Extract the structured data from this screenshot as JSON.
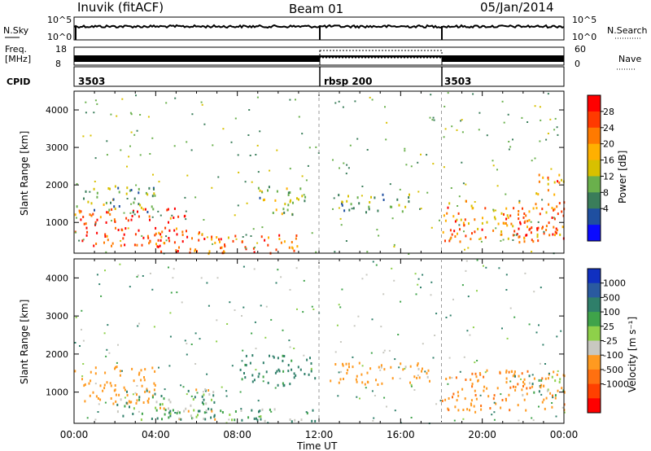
{
  "header": {
    "title": "Inuvik (fitACF)",
    "beam": "Beam 01",
    "date": "05/Jan/2014"
  },
  "noise_panel": {
    "left_label": "N.Sky",
    "right_label": "N.Search",
    "left_ticks": [
      "10^5",
      "10^0"
    ],
    "right_ticks": [
      "10^5",
      "10^0"
    ]
  },
  "freq_panel": {
    "left_label_1": "Freq.",
    "left_label_2": "[MHz]",
    "right_label": "Nave",
    "left_ticks": [
      "18",
      "8"
    ],
    "right_ticks": [
      "60",
      "0"
    ]
  },
  "cpid_panel": {
    "label": "CPID",
    "segments": [
      "3503",
      "rbsp 200",
      "3503"
    ]
  },
  "time_axis": {
    "label": "Time UT",
    "ticks": [
      "00:00",
      "04:00",
      "08:00",
      "12:00",
      "16:00",
      "20:00",
      "00:00"
    ]
  },
  "power_panel": {
    "ylabel": "Slant Range [km]",
    "yticks": [
      "4000",
      "3000",
      "2000",
      "1000"
    ],
    "colorbar_label": "Power [dB]",
    "colorbar_ticks": [
      "28",
      "24",
      "20",
      "16",
      "12",
      "8",
      "4"
    ],
    "colors": [
      "#ff0000",
      "#ff3a00",
      "#ff7a00",
      "#ffb000",
      "#d8c000",
      "#6ab04c",
      "#3a7d5a",
      "#1f4fa0",
      "#0a0aff"
    ]
  },
  "velocity_panel": {
    "ylabel": "Slant Range [km]",
    "yticks": [
      "4000",
      "3000",
      "2000",
      "1000"
    ],
    "colorbar_label": "Velocity [m s⁻¹]",
    "colorbar_ticks": [
      "1000",
      "500",
      "100",
      "25",
      "-25",
      "-100",
      "-500",
      "-1000"
    ],
    "colors": [
      "#1030c0",
      "#2a5aa0",
      "#2f7f6a",
      "#3fa34a",
      "#8ed04a",
      "#c8c8c0",
      "#ff9a20",
      "#ff7010",
      "#ff4000",
      "#ff0000"
    ]
  },
  "chart_data": {
    "type": "heatmap",
    "x_range_hours": [
      0,
      24
    ],
    "y_range_km": [
      180,
      4500
    ],
    "mode_changes_hours": [
      12,
      18
    ],
    "power_clusters": [
      {
        "t0": 0,
        "t1": 5.5,
        "r0": 400,
        "r1": 1400,
        "level": 27
      },
      {
        "t0": 0,
        "t1": 4,
        "r0": 1300,
        "r1": 2000,
        "level": 12
      },
      {
        "t0": 4,
        "t1": 7.5,
        "r0": 200,
        "r1": 800,
        "level": 25
      },
      {
        "t0": 6.5,
        "t1": 11,
        "r0": 200,
        "r1": 700,
        "level": 24
      },
      {
        "t0": 9,
        "t1": 11.5,
        "r0": 1200,
        "r1": 2000,
        "level": 14
      },
      {
        "t0": 12.8,
        "t1": 16.5,
        "r0": 1300,
        "r1": 1800,
        "level": 10
      },
      {
        "t0": 18,
        "t1": 24,
        "r0": 500,
        "r1": 1600,
        "level": 22
      },
      {
        "t0": 21,
        "t1": 24,
        "r0": 600,
        "r1": 1300,
        "level": 28
      },
      {
        "t0": 22.5,
        "t1": 24,
        "r0": 1700,
        "r1": 2300,
        "level": 22
      }
    ],
    "velocity_clusters": [
      {
        "t0": 0,
        "t1": 4,
        "r0": 700,
        "r1": 1700,
        "v": -300
      },
      {
        "t0": 2,
        "t1": 7,
        "r0": 300,
        "r1": 1100,
        "v": 50
      },
      {
        "t0": 4,
        "t1": 8,
        "r0": 300,
        "r1": 700,
        "v": 0
      },
      {
        "t0": 8,
        "t1": 11.8,
        "r0": 1200,
        "r1": 2000,
        "v": 200
      },
      {
        "t0": 8,
        "t1": 12,
        "r0": 250,
        "r1": 600,
        "v": 100
      },
      {
        "t0": 12.5,
        "t1": 17.5,
        "r0": 1200,
        "r1": 1800,
        "v": -250
      },
      {
        "t0": 18,
        "t1": 24,
        "r0": 500,
        "r1": 1600,
        "v": -400
      },
      {
        "t0": 21.5,
        "t1": 24,
        "r0": 900,
        "r1": 1500,
        "v": -10
      }
    ]
  }
}
